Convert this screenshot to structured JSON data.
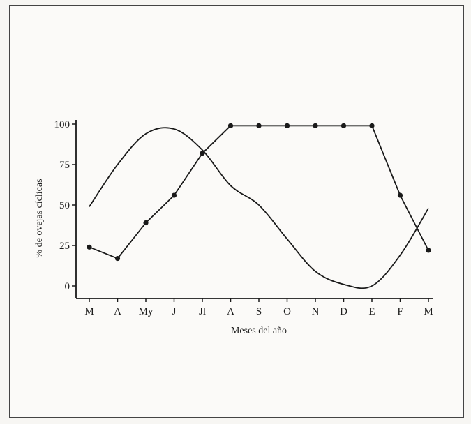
{
  "chart_data": {
    "type": "line",
    "title": "",
    "xlabel": "Meses del año",
    "ylabel": "% de ovejas cíclicas",
    "categories": [
      "M",
      "A",
      "My",
      "J",
      "Jl",
      "A",
      "S",
      "O",
      "N",
      "D",
      "E",
      "F",
      "M"
    ],
    "yticks": [
      "0",
      "25",
      "50",
      "75",
      "100"
    ],
    "ylim": [
      0,
      100
    ],
    "grid": false,
    "legend": "none",
    "series": [
      {
        "values": [
          24,
          17,
          39,
          56,
          82,
          99,
          99,
          99,
          99,
          99,
          99,
          56,
          22
        ],
        "markers": true
      },
      {
        "values": [
          49,
          75,
          94,
          97,
          84,
          62,
          50,
          29,
          9,
          1,
          0,
          19,
          48
        ],
        "markers": false
      }
    ],
    "colors": {
      "line": "#1a1a1a",
      "axis": "#1a1a1a"
    }
  }
}
